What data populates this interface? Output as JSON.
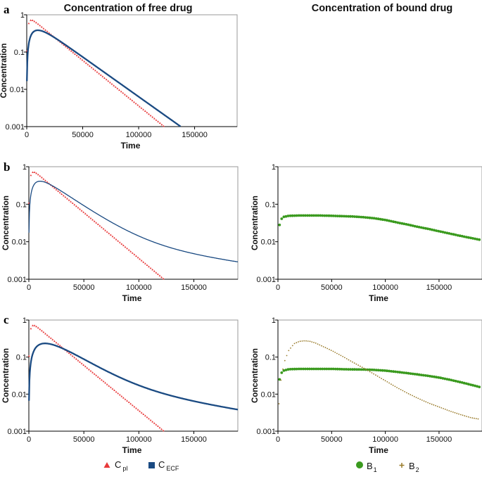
{
  "column_titles": {
    "left": "Concentration of free drug",
    "right": "Concentration of bound drug"
  },
  "colors": {
    "c_pl": "#e8393a",
    "c_ecf": "#1a4a82",
    "b1": "#3a9a1e",
    "b2": "#9a7c2c"
  },
  "legend": {
    "c_pl": {
      "base": "C",
      "sub": "pl"
    },
    "c_ecf": {
      "base": "C",
      "sub": "ECF"
    },
    "b1": {
      "base": "B",
      "sub": "1"
    },
    "b2": {
      "base": "B",
      "sub": "2"
    }
  },
  "chart_data": [
    {
      "id": "a-free",
      "panel_letter": "a",
      "type": "line",
      "yscale": "log",
      "xlabel": "Time",
      "ylabel": "Concentration",
      "xlim": [
        0,
        188000
      ],
      "ylim": [
        0.001,
        1
      ],
      "xticks": [
        0,
        50000,
        100000,
        150000
      ],
      "yticks": [
        0.001,
        0.01,
        0.1,
        1
      ],
      "ytick_labels": [
        "0.001",
        "0.01",
        "0.1",
        "1"
      ],
      "series": [
        {
          "name": "C_pl",
          "style": "triangle-dots",
          "color_key": "c_pl",
          "model": {
            "A": 1.0,
            "alpha": 5.62e-05,
            "ka": 0.00063,
            "tmax_data": 150000
          }
        },
        {
          "name": "C_ECF",
          "style": "thick-line",
          "color_key": "c_ecf",
          "model": {
            "A": 0.86,
            "alpha": 4.91e-05,
            "ka": 0.00018,
            "tmax_data": 168000
          }
        }
      ]
    },
    {
      "id": "b-free",
      "panel_letter": "b",
      "type": "line",
      "yscale": "log",
      "xlabel": "Time",
      "ylabel": "Concentration",
      "xlim": [
        0,
        190000
      ],
      "ylim": [
        0.001,
        1
      ],
      "xticks": [
        0,
        50000,
        100000,
        150000
      ],
      "yticks": [
        0.001,
        0.01,
        0.1,
        1
      ],
      "ytick_labels": [
        "0.001",
        "0.01",
        "0.1",
        "1"
      ],
      "series": [
        {
          "name": "C_pl",
          "style": "triangle-dots",
          "color_key": "c_pl",
          "model": {
            "A": 1.0,
            "alpha": 5.62e-05,
            "ka": 0.00063,
            "tmax_data": 150000
          }
        },
        {
          "name": "C_ECF",
          "style": "thin-line",
          "color_key": "c_ecf",
          "model": {
            "A": 0.87,
            "alpha": 4.74e-05,
            "ka": 0.00018,
            "B": 0.017,
            "beta": 9.5e-06
          }
        }
      ]
    },
    {
      "id": "b-bound",
      "type": "scatter",
      "yscale": "log",
      "xlabel": "Time",
      "ylabel": "Concentration",
      "xlim": [
        0,
        190000
      ],
      "ylim": [
        0.001,
        1
      ],
      "xticks": [
        0,
        50000,
        100000,
        150000
      ],
      "yticks": [
        0.001,
        0.01,
        0.1,
        1
      ],
      "ytick_labels": [
        "0.001",
        "0.01",
        "0.1",
        "1"
      ],
      "series": [
        {
          "name": "B_1",
          "style": "circle-dots",
          "color_key": "b1",
          "x": [
            1500,
            4000,
            10000,
            20000,
            30000,
            40000,
            50000,
            60000,
            70000,
            80000,
            90000,
            100000,
            110000,
            120000,
            130000,
            140000,
            150000,
            160000,
            170000,
            180000,
            188000
          ],
          "values": [
            0.028,
            0.045,
            0.049,
            0.05,
            0.05,
            0.05,
            0.049,
            0.048,
            0.047,
            0.045,
            0.042,
            0.038,
            0.033,
            0.029,
            0.025,
            0.022,
            0.019,
            0.0165,
            0.0143,
            0.0125,
            0.0113
          ]
        }
      ]
    },
    {
      "id": "c-free",
      "panel_letter": "c",
      "type": "line",
      "yscale": "log",
      "xlabel": "Time",
      "ylabel": "Concentration",
      "xlim": [
        0,
        190000
      ],
      "ylim": [
        0.001,
        1
      ],
      "xticks": [
        0,
        50000,
        100000,
        150000
      ],
      "yticks": [
        0.001,
        0.01,
        0.1,
        1
      ],
      "ytick_labels": [
        "0.001",
        "0.01",
        "0.1",
        "1"
      ],
      "series": [
        {
          "name": "C_pl",
          "style": "triangle-dots",
          "color_key": "c_pl",
          "model": {
            "A": 1.0,
            "alpha": 5.62e-05,
            "ka": 0.00063,
            "tmax_data": 150000
          }
        },
        {
          "name": "C_ECF",
          "style": "thick-line",
          "color_key": "c_ecf",
          "model": {
            "A": 0.79,
            "alpha": 4.68e-05,
            "ka": 0.0001,
            "B": 0.03,
            "beta": 1.1e-05
          }
        }
      ]
    },
    {
      "id": "c-bound",
      "type": "scatter",
      "yscale": "log",
      "xlabel": "Time",
      "ylabel": "Concentration",
      "xlim": [
        0,
        190000
      ],
      "ylim": [
        0.001,
        1
      ],
      "xticks": [
        0,
        50000,
        100000,
        150000
      ],
      "yticks": [
        0.001,
        0.01,
        0.1,
        1
      ],
      "ytick_labels": [
        "0.001",
        "0.01",
        "0.1",
        "1"
      ],
      "series": [
        {
          "name": "B_1",
          "style": "circle-dots",
          "color_key": "b1",
          "x": [
            1500,
            4000,
            10000,
            20000,
            30000,
            40000,
            50000,
            60000,
            70000,
            80000,
            90000,
            100000,
            110000,
            120000,
            130000,
            140000,
            150000,
            160000,
            170000,
            180000,
            188000
          ],
          "values": [
            0.025,
            0.042,
            0.047,
            0.048,
            0.048,
            0.048,
            0.048,
            0.047,
            0.0465,
            0.046,
            0.045,
            0.043,
            0.04,
            0.037,
            0.034,
            0.031,
            0.028,
            0.0245,
            0.021,
            0.0178,
            0.0155
          ]
        },
        {
          "name": "B_2",
          "style": "plus-dots",
          "color_key": "b2",
          "x": [
            1000,
            3000,
            6000,
            10000,
            15000,
            20000,
            25000,
            30000,
            35000,
            40000,
            50000,
            60000,
            70000,
            80000,
            90000,
            100000,
            110000,
            120000,
            130000,
            140000,
            150000,
            160000,
            170000,
            180000,
            188000
          ],
          "values": [
            0.0055,
            0.028,
            0.075,
            0.15,
            0.23,
            0.265,
            0.275,
            0.265,
            0.24,
            0.205,
            0.15,
            0.105,
            0.072,
            0.05,
            0.034,
            0.023,
            0.0155,
            0.0108,
            0.0078,
            0.0058,
            0.0045,
            0.0035,
            0.0028,
            0.0023,
            0.0021
          ]
        }
      ]
    }
  ]
}
